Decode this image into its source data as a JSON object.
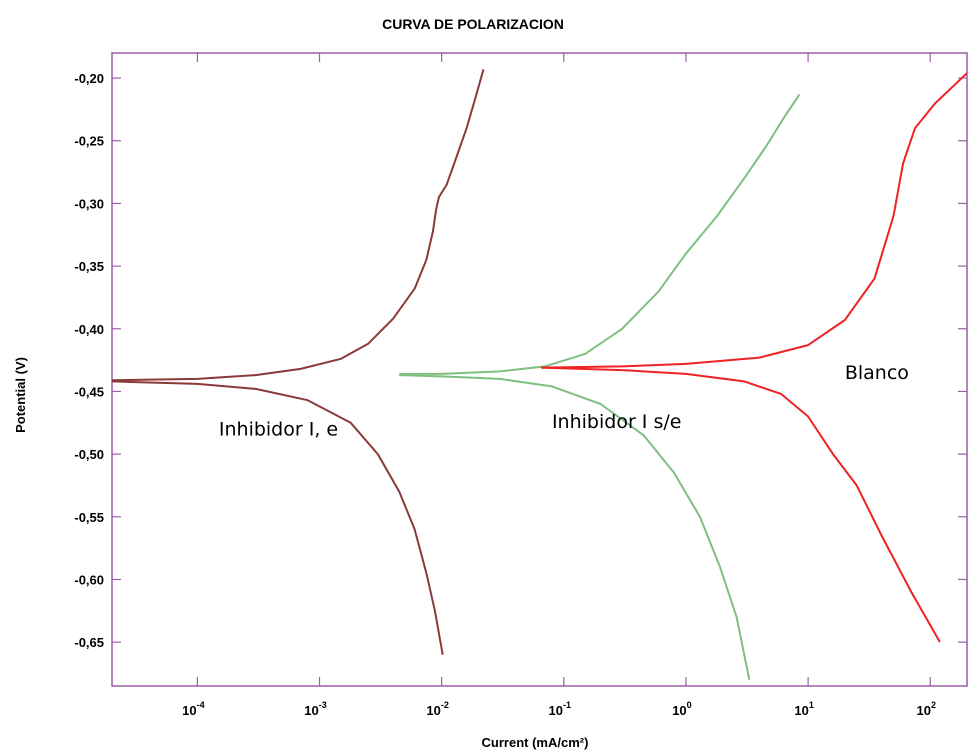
{
  "chart_data": {
    "type": "line",
    "title": "CURVA DE POLARIZACION",
    "xlabel": "Current (mA/cm²)",
    "ylabel": "Potential (V)",
    "xscale": "log",
    "xlim": [
      2e-05,
      200
    ],
    "ylim": [
      -0.685,
      -0.18
    ],
    "grid": false,
    "x_ticks": [
      {
        "value": 0.0001,
        "base": "10",
        "exp": "-4"
      },
      {
        "value": 0.001,
        "base": "10",
        "exp": "-3"
      },
      {
        "value": 0.01,
        "base": "10",
        "exp": "-2"
      },
      {
        "value": 0.1,
        "base": "10",
        "exp": "-1"
      },
      {
        "value": 1,
        "base": "10",
        "exp": "0"
      },
      {
        "value": 10,
        "base": "10",
        "exp": "1"
      },
      {
        "value": 100,
        "base": "10",
        "exp": "2"
      }
    ],
    "y_ticks": [
      {
        "value": -0.2,
        "label": "-0,20"
      },
      {
        "value": -0.25,
        "label": "-0,25"
      },
      {
        "value": -0.3,
        "label": "-0,30"
      },
      {
        "value": -0.35,
        "label": "-0,35"
      },
      {
        "value": -0.4,
        "label": "-0,40"
      },
      {
        "value": -0.45,
        "label": "-0,45"
      },
      {
        "value": -0.5,
        "label": "-0,50"
      },
      {
        "value": -0.55,
        "label": "-0,55"
      },
      {
        "value": -0.6,
        "label": "-0,60"
      },
      {
        "value": -0.65,
        "label": "-0,65"
      }
    ],
    "series": [
      {
        "color": "#8b3a3a",
        "anodic": [
          [
            2e-05,
            -0.441
          ],
          [
            0.0001,
            -0.44
          ],
          [
            0.0003,
            -0.437
          ],
          [
            0.0007,
            -0.432
          ],
          [
            0.0015,
            -0.424
          ],
          [
            0.0025,
            -0.412
          ],
          [
            0.004,
            -0.392
          ],
          [
            0.006,
            -0.368
          ],
          [
            0.0075,
            -0.345
          ],
          [
            0.0085,
            -0.322
          ],
          [
            0.009,
            -0.305
          ],
          [
            0.0095,
            -0.295
          ],
          [
            0.011,
            -0.285
          ],
          [
            0.013,
            -0.265
          ],
          [
            0.016,
            -0.24
          ],
          [
            0.019,
            -0.215
          ],
          [
            0.022,
            -0.193
          ]
        ],
        "cathodic": [
          [
            2e-05,
            -0.442
          ],
          [
            0.0001,
            -0.444
          ],
          [
            0.0003,
            -0.448
          ],
          [
            0.0008,
            -0.457
          ],
          [
            0.0018,
            -0.475
          ],
          [
            0.003,
            -0.5
          ],
          [
            0.0045,
            -0.53
          ],
          [
            0.006,
            -0.56
          ],
          [
            0.0075,
            -0.595
          ],
          [
            0.0088,
            -0.625
          ],
          [
            0.0102,
            -0.66
          ]
        ]
      },
      {
        "color": "#7fbf7f",
        "anodic": [
          [
            0.0045,
            -0.436
          ],
          [
            0.01,
            -0.436
          ],
          [
            0.03,
            -0.434
          ],
          [
            0.07,
            -0.43
          ],
          [
            0.15,
            -0.42
          ],
          [
            0.3,
            -0.4
          ],
          [
            0.6,
            -0.37
          ],
          [
            1.0,
            -0.34
          ],
          [
            1.8,
            -0.31
          ],
          [
            3,
            -0.28
          ],
          [
            4.5,
            -0.255
          ],
          [
            6.5,
            -0.23
          ],
          [
            8.5,
            -0.213
          ]
        ],
        "cathodic": [
          [
            0.0045,
            -0.437
          ],
          [
            0.01,
            -0.438
          ],
          [
            0.03,
            -0.44
          ],
          [
            0.08,
            -0.446
          ],
          [
            0.2,
            -0.46
          ],
          [
            0.45,
            -0.485
          ],
          [
            0.8,
            -0.515
          ],
          [
            1.3,
            -0.55
          ],
          [
            1.9,
            -0.59
          ],
          [
            2.6,
            -0.63
          ],
          [
            3.3,
            -0.68
          ]
        ]
      },
      {
        "color": "#ee2222",
        "anodic": [
          [
            0.065,
            -0.431
          ],
          [
            0.3,
            -0.43
          ],
          [
            1,
            -0.428
          ],
          [
            4,
            -0.423
          ],
          [
            10,
            -0.413
          ],
          [
            20,
            -0.393
          ],
          [
            35,
            -0.36
          ],
          [
            50,
            -0.31
          ],
          [
            60,
            -0.268
          ],
          [
            75,
            -0.24
          ],
          [
            110,
            -0.22
          ],
          [
            160,
            -0.205
          ],
          [
            200,
            -0.196
          ]
        ],
        "cathodic": [
          [
            0.065,
            -0.431
          ],
          [
            0.3,
            -0.433
          ],
          [
            1,
            -0.436
          ],
          [
            3,
            -0.442
          ],
          [
            6,
            -0.452
          ],
          [
            10,
            -0.47
          ],
          [
            16,
            -0.5
          ],
          [
            25,
            -0.525
          ],
          [
            40,
            -0.565
          ],
          [
            70,
            -0.61
          ],
          [
            120,
            -0.65
          ]
        ]
      }
    ],
    "annotations": [
      {
        "text": "Inhibidor I, e",
        "x": 0.00015,
        "y": -0.485
      },
      {
        "text": "Inhibidor I s/e",
        "x": 0.08,
        "y": -0.479
      },
      {
        "text": "Blanco",
        "x": 20,
        "y": -0.44
      }
    ],
    "frame_color": "#9b5fa6"
  }
}
